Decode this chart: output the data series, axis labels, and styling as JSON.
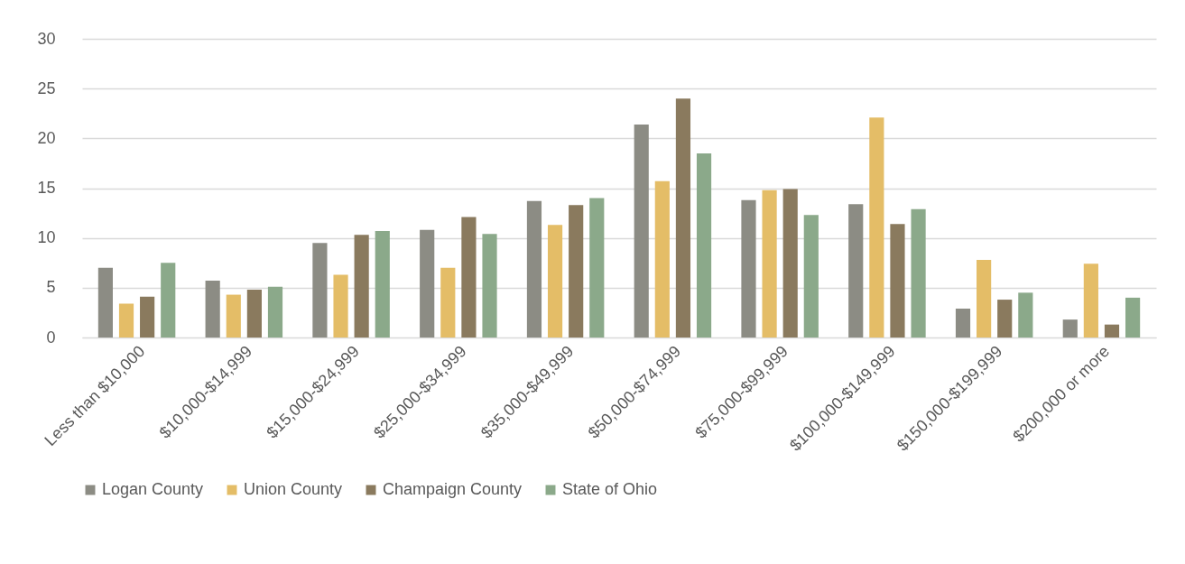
{
  "chart_data": {
    "type": "bar",
    "categories": [
      "Less than $10,000",
      "$10,000-$14,999",
      "$15,000-$24,999",
      "$25,000-$34,999",
      "$35,000-$49,999",
      "$50,000-$74,999",
      "$75,000-$99,999",
      "$100,000-$149,999",
      "$150,000-$199,999",
      "$200,000 or more"
    ],
    "series": [
      {
        "name": "Logan County",
        "color": "#8c8c84",
        "values": [
          7.0,
          5.7,
          9.5,
          10.8,
          13.7,
          21.4,
          13.8,
          13.4,
          2.9,
          1.8
        ]
      },
      {
        "name": "Union County",
        "color": "#e4bd67",
        "values": [
          3.4,
          4.3,
          6.3,
          7.0,
          11.3,
          15.7,
          14.8,
          22.1,
          7.8,
          7.4
        ]
      },
      {
        "name": "Champaign County",
        "color": "#8a7a5e",
        "values": [
          4.1,
          4.8,
          10.3,
          12.1,
          13.3,
          24.0,
          14.9,
          11.4,
          3.8,
          1.3
        ]
      },
      {
        "name": "State of Ohio",
        "color": "#8ba98a",
        "values": [
          7.5,
          5.1,
          10.7,
          10.4,
          14.0,
          18.5,
          12.3,
          12.9,
          4.5,
          4.0
        ]
      }
    ],
    "ylim": [
      0,
      30
    ],
    "yticks": [
      0,
      5,
      10,
      15,
      20,
      25,
      30
    ],
    "grid": "y",
    "legend": "bottom"
  }
}
